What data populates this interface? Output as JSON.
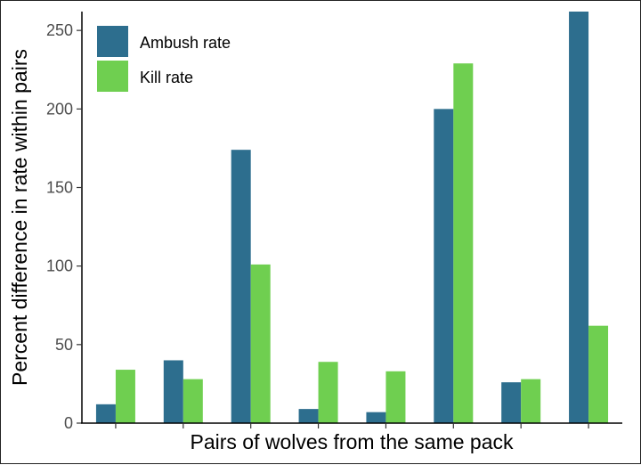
{
  "colors": {
    "ambush": "#2d6e8e",
    "kill": "#6fcf50",
    "axis": "#000000"
  },
  "chart_data": {
    "type": "bar",
    "xlabel": "Pairs of wolves from the same pack",
    "ylabel": "Percent difference in rate within pairs",
    "ylim": [
      0,
      262
    ],
    "yticks": [
      0,
      50,
      100,
      150,
      200,
      250
    ],
    "categories": [
      "",
      "",
      "",
      "",
      "",
      "",
      "",
      ""
    ],
    "series": [
      {
        "name": "Ambush rate",
        "color": "#2d6e8e",
        "values": [
          12,
          40,
          174,
          9,
          7,
          200,
          26,
          262
        ]
      },
      {
        "name": "Kill rate",
        "color": "#6fcf50",
        "values": [
          34,
          28,
          101,
          39,
          33,
          229,
          28,
          62
        ]
      }
    ],
    "legend_position": "top-left",
    "grid": false
  }
}
